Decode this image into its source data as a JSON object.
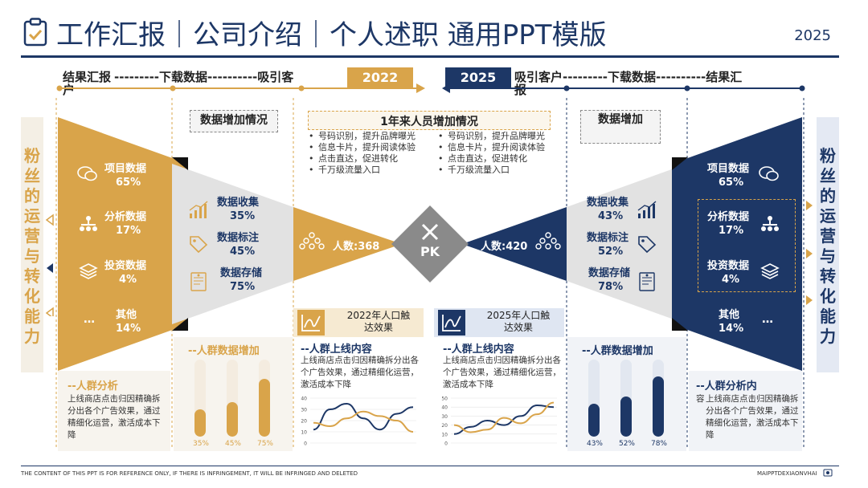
{
  "header": {
    "title": "工作汇报｜公司介绍｜个人述职 通用PPT模版",
    "year": "2025"
  },
  "colors": {
    "gold": "#d9a44a",
    "navy": "#1d3766",
    "gray": "#e2e2e2"
  },
  "timeline_left": {
    "text1": "结果汇报",
    "text2": "---------下载数据----------吸引客",
    "wrap": "户",
    "tag": "2022"
  },
  "timeline_right": {
    "tag": "2025",
    "text1": "吸引客户---------下载数据----------结果汇",
    "wrap": "报"
  },
  "side_left": "粉丝的运营与转化能力",
  "side_right": "粉丝的运营与转化能力",
  "left_funnel": {
    "items": [
      {
        "label": "项目数据",
        "value": "65%",
        "icon": "chat-bubbles-icon"
      },
      {
        "label": "分析数据",
        "value": "17%",
        "icon": "hierarchy-icon"
      },
      {
        "label": "投资数据",
        "value": "4%",
        "icon": "layers-icon"
      },
      {
        "label": "其他",
        "value": "14%",
        "icon": "ellipsis-icon"
      }
    ]
  },
  "left_mid": {
    "box": "数据增加情况",
    "items": [
      {
        "label": "数据收集",
        "value": "35%",
        "icon": "bar-chart-icon"
      },
      {
        "label": "数据标注",
        "value": "45%",
        "icon": "tag-icon"
      },
      {
        "label": "数据存储",
        "value": "75%",
        "icon": "document-icon"
      }
    ]
  },
  "center": {
    "box": "1年来人员增加情况",
    "bullets_left": [
      "号码识别，提升品牌曝光",
      "信息卡片，提升阅读体验",
      "点击直达，促进转化",
      "千万级流量入口"
    ],
    "bullets_right": [
      "号码识别，提升品牌曝光",
      "信息卡片，提升阅读体验",
      "点击直达，促进转化",
      "千万级流量入口"
    ],
    "left_people": "人数:368",
    "right_people": "人数:420",
    "pk": "PK"
  },
  "right_mid": {
    "box": "数据增加",
    "items": [
      {
        "label": "数据收集",
        "value": "43%",
        "icon": "bar-chart-icon"
      },
      {
        "label": "数据标注",
        "value": "52%",
        "icon": "tag-icon"
      },
      {
        "label": "数据存储",
        "value": "78%",
        "icon": "document-icon"
      }
    ]
  },
  "right_funnel": {
    "items": [
      {
        "label": "项目数据",
        "value": "65%",
        "icon": "chat-bubbles-icon"
      },
      {
        "label": "分析数据",
        "value": "17%",
        "icon": "hierarchy-icon"
      },
      {
        "label": "投资数据",
        "value": "4%",
        "icon": "layers-icon"
      },
      {
        "label": "其他",
        "value": "14%",
        "icon": "ellipsis-icon"
      }
    ]
  },
  "bottom": {
    "left_analysis": {
      "title": "--人群分析",
      "desc": "上线商店点击归因精确拆分出各个广告效果，通过精细化运营，激活成本下降"
    },
    "left_bars": {
      "title": "--人群数据增加",
      "values": [
        35,
        45,
        75
      ],
      "labels": [
        "35%",
        "45%",
        "75%"
      ]
    },
    "chart_2022": {
      "header": "2022年人口触达效果",
      "title": "--人群上线内容",
      "desc": "上线商店点击归因精确拆分出各个广告效果，通过精细化运营，激活成本下降"
    },
    "chart_2025": {
      "header": "2025年人口触达效果",
      "title": "--人群上线内容",
      "desc": "上线商店点击归因精确拆分出各个广告效果，通过精细化运营，激活成本下降"
    },
    "right_bars": {
      "title": "--人群数据增加",
      "values": [
        43,
        52,
        78
      ],
      "labels": [
        "43%",
        "52%",
        "78%"
      ]
    },
    "right_analysis": {
      "title": "--人群分析内",
      "wrap": "容",
      "desc": "上线商店点击归因精确拆分出各个广告效果，通过精细化运营，激活成本下降"
    }
  },
  "chart_data": [
    {
      "type": "line",
      "yticks": [
        0,
        10,
        20,
        30,
        40
      ],
      "ylim": [
        0,
        40
      ],
      "series": [
        {
          "values": [
            12,
            30,
            35,
            22,
            12,
            26,
            32
          ]
        },
        {
          "values": [
            18,
            15,
            22,
            28,
            24,
            20,
            10
          ]
        }
      ]
    },
    {
      "type": "line",
      "yticks": [
        0,
        10,
        20,
        30,
        40,
        50
      ],
      "ylim": [
        0,
        50
      ],
      "series": [
        {
          "values": [
            10,
            18,
            25,
            20,
            30,
            42,
            40
          ]
        },
        {
          "values": [
            20,
            12,
            15,
            28,
            22,
            32,
            45
          ]
        }
      ]
    }
  ],
  "footer": {
    "left": "THE CONTENT OF THIS PPT IS FOR REFERENCE ONLY, IF THERE IS INFRINGEMENT, IT WILL BE INFRINGED AND DELETED",
    "right": "MAIPPTDEXIAONVHAI"
  }
}
